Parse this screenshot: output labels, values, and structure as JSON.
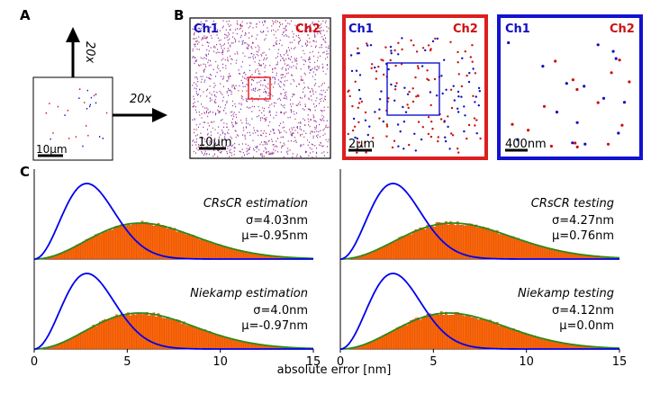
{
  "panel_labels": {
    "a": "A",
    "b": "B",
    "c": "C"
  },
  "panel_a": {
    "zoom_up": "20x",
    "zoom_right": "20x",
    "scalebar": "10μm"
  },
  "panel_b": {
    "ch1_label": "Ch1",
    "ch2_label": "Ch2",
    "ch1_color": "#1010c0",
    "ch2_color": "#cc1111",
    "views": [
      {
        "scalebar": "10μm",
        "frame_color": "#000000"
      },
      {
        "scalebar": "2μm",
        "frame_color": "#dd1f1f"
      },
      {
        "scalebar": "400nm",
        "frame_color": "#1212d0"
      }
    ]
  },
  "colors": {
    "hist_fill": "#ff6600",
    "hist_edge": "#c43400",
    "gauss_fit": "#2a8a1a",
    "reference_curve": "#0000ee"
  },
  "chart_data": [
    {
      "type": "bar",
      "title": "CRsCR estimation",
      "sigma_label": "σ=4.03nm",
      "mu_label": "μ=-0.95nm",
      "sigma": 4.03,
      "mu": -0.95,
      "xlabel": "absolute error [nm]",
      "xlim": [
        0,
        15
      ],
      "xticks": [
        0,
        5,
        10,
        15
      ],
      "ref_sigma": 2.0
    },
    {
      "type": "bar",
      "title": "CRsCR testing",
      "sigma_label": "σ=4.27nm",
      "mu_label": "μ=0.76nm",
      "sigma": 4.27,
      "mu": 0.76,
      "xlabel": "absolute error [nm]",
      "xlim": [
        0,
        15
      ],
      "xticks": [
        0,
        5,
        10,
        15
      ],
      "ref_sigma": 2.0
    },
    {
      "type": "bar",
      "title": "Niekamp estimation",
      "sigma_label": "σ=4.0nm",
      "mu_label": "μ=-0.97nm",
      "sigma": 4.0,
      "mu": -0.97,
      "xlabel": "absolute error [nm]",
      "xlim": [
        0,
        15
      ],
      "xticks": [
        0,
        5,
        10,
        15
      ],
      "ref_sigma": 2.0
    },
    {
      "type": "bar",
      "title": "Niekamp testing",
      "sigma_label": "σ=4.12nm",
      "mu_label": "μ=0.0nm",
      "sigma": 4.12,
      "mu": 0.0,
      "xlabel": "absolute error [nm]",
      "xlim": [
        0,
        15
      ],
      "xticks": [
        0,
        5,
        10,
        15
      ],
      "ref_sigma": 2.0
    }
  ]
}
